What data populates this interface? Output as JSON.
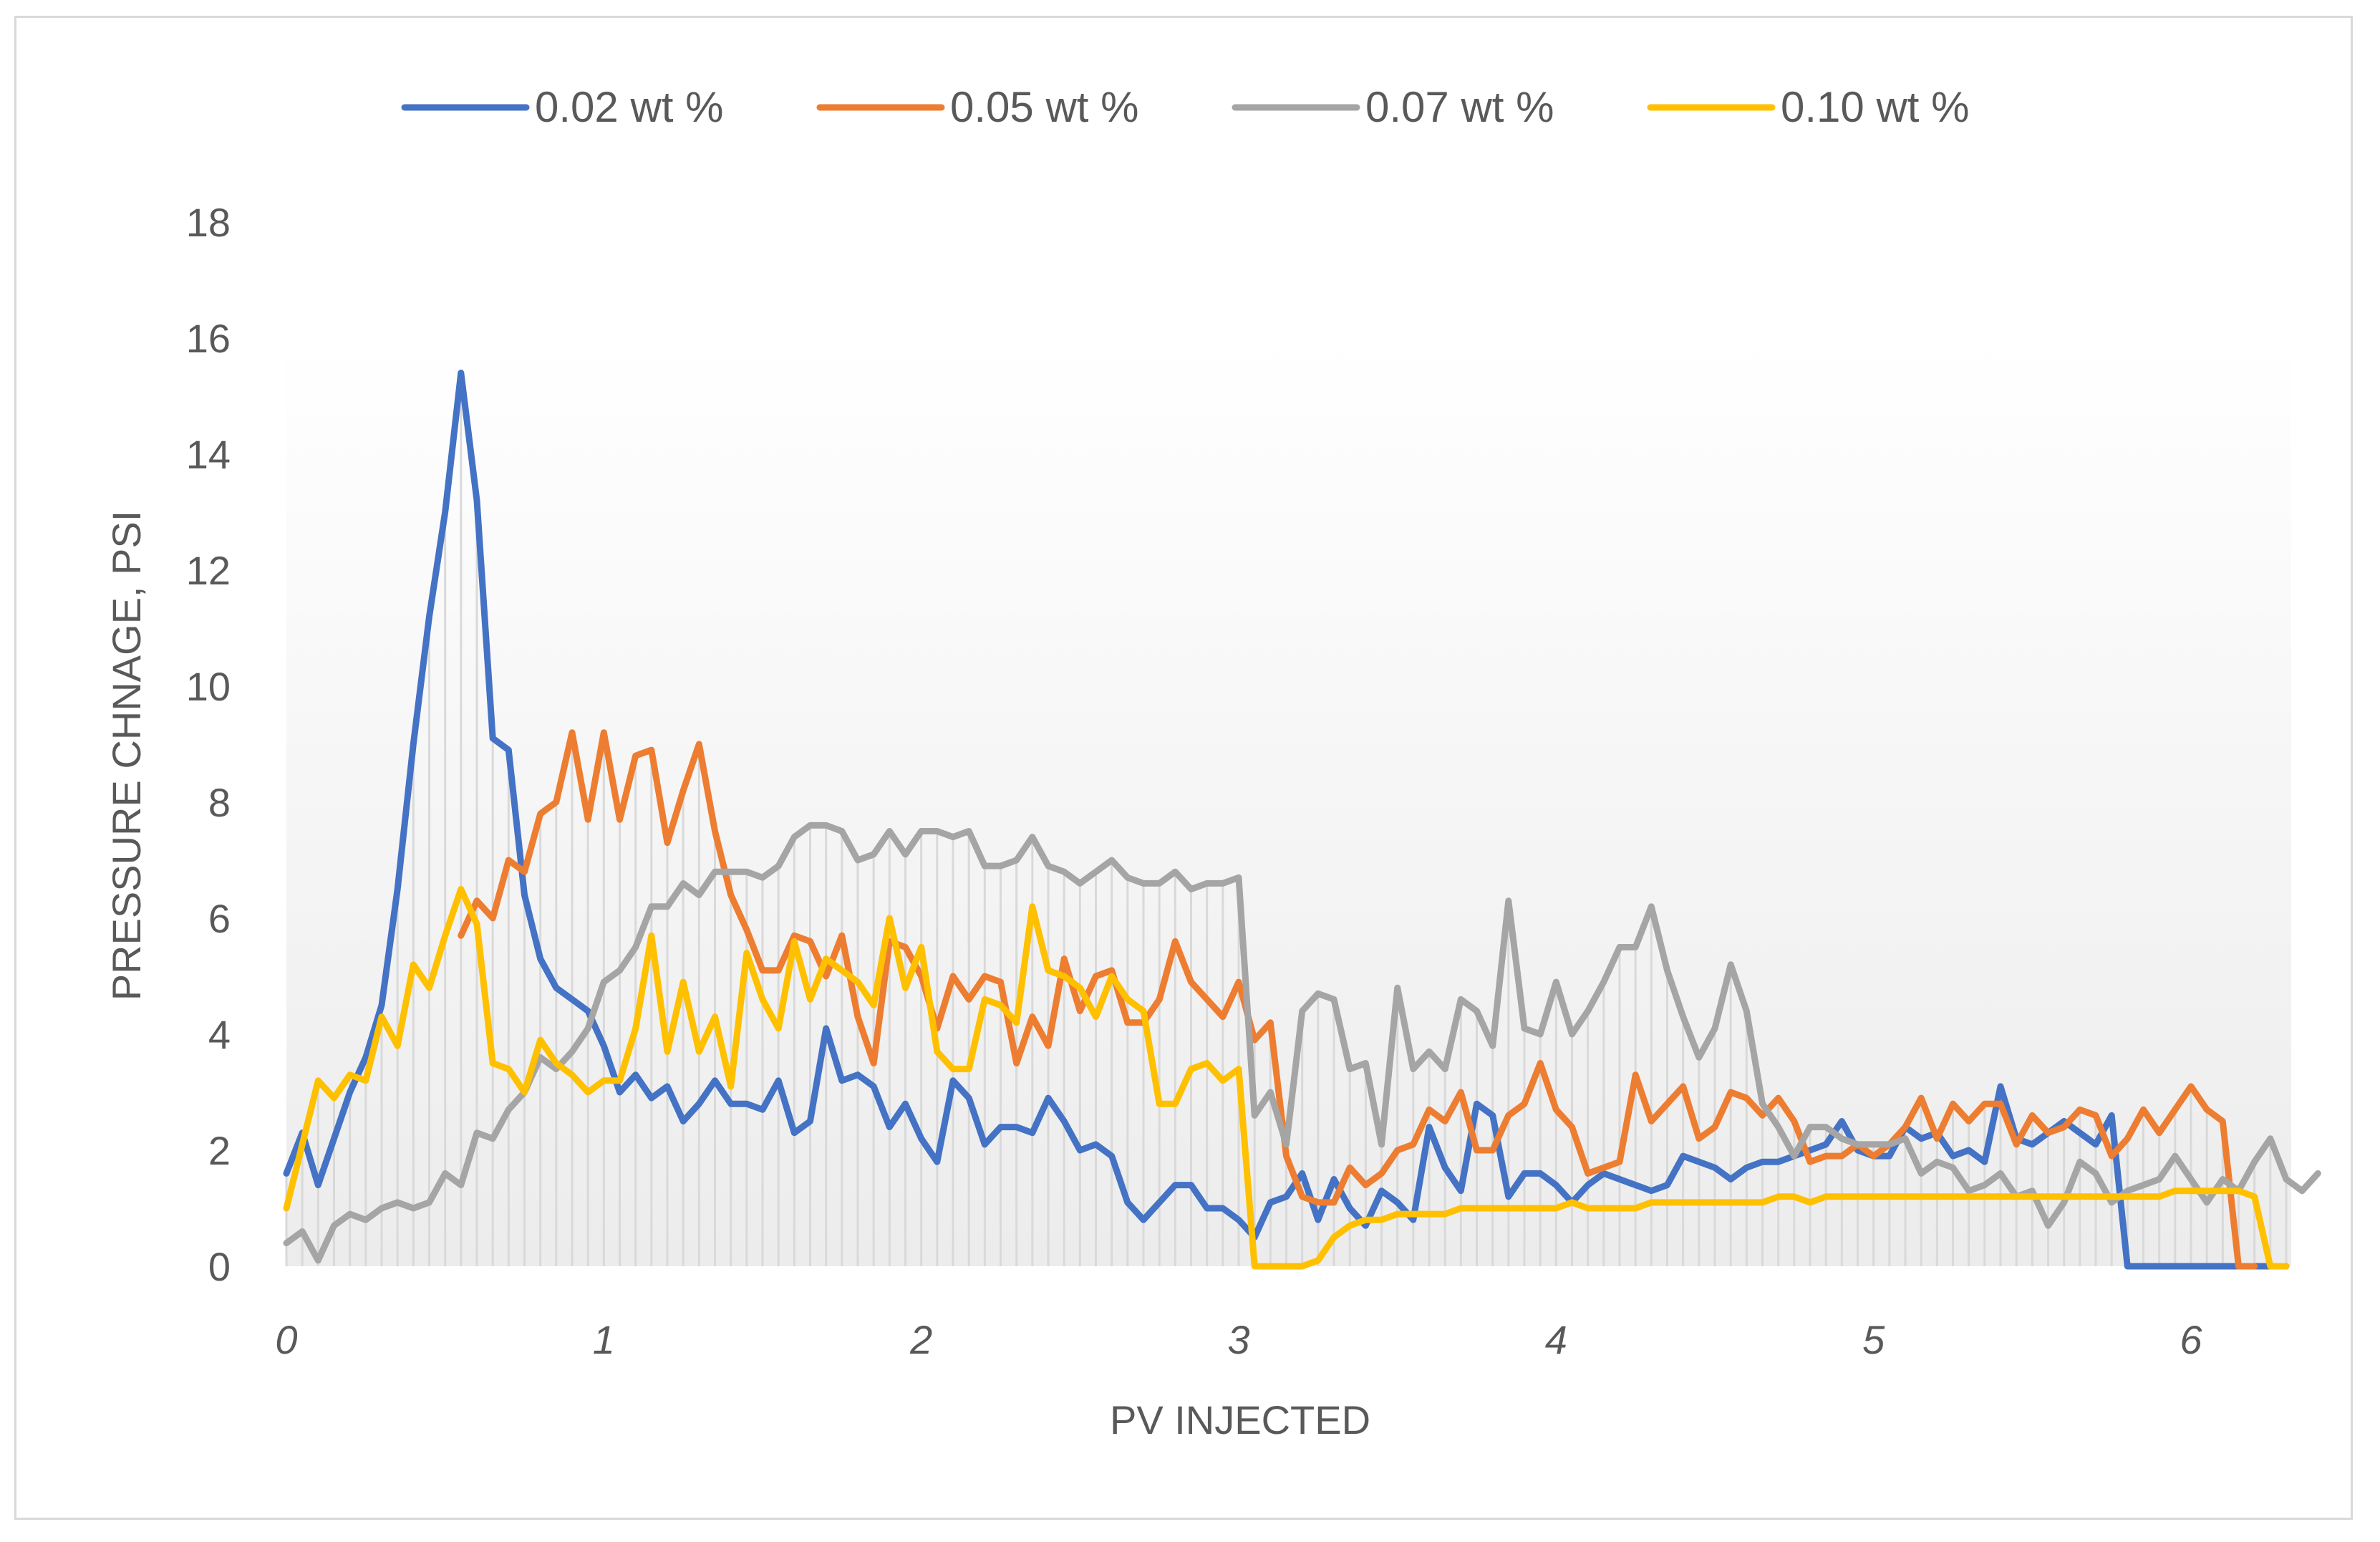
{
  "chart_data": {
    "type": "line",
    "title": "",
    "xlabel": "PV INJECTED",
    "ylabel": "PRESSURE CHNAGE, PSI",
    "xlim": [
      0,
      6.3
    ],
    "ylim": [
      0,
      18
    ],
    "xticks": [
      "0",
      "1",
      "2",
      "3",
      "4",
      "5",
      "6"
    ],
    "xtick_values": [
      0,
      1,
      2,
      3,
      4,
      5,
      6
    ],
    "yticks": [
      "0",
      "2",
      "4",
      "6",
      "8",
      "10",
      "12",
      "14",
      "16",
      "18"
    ],
    "ytick_values": [
      0,
      2,
      4,
      6,
      8,
      10,
      12,
      14,
      16,
      18
    ],
    "legend_position": "top",
    "x_step": 0.05,
    "series": [
      {
        "name": "0.02 wt %",
        "color": "#4472C4",
        "values": [
          1.6,
          2.3,
          1.4,
          2.2,
          3.0,
          3.6,
          4.5,
          6.5,
          9.0,
          11.2,
          13.0,
          15.4,
          13.2,
          9.1,
          8.9,
          6.4,
          5.3,
          4.8,
          4.6,
          4.4,
          3.8,
          3.0,
          3.3,
          2.9,
          3.1,
          2.5,
          2.8,
          3.2,
          2.8,
          2.8,
          2.7,
          3.2,
          2.3,
          2.5,
          4.1,
          3.2,
          3.3,
          3.1,
          2.4,
          2.8,
          2.2,
          1.8,
          3.2,
          2.9,
          2.1,
          2.4,
          2.4,
          2.3,
          2.9,
          2.5,
          2.0,
          2.1,
          1.9,
          1.1,
          0.8,
          1.1,
          1.4,
          1.4,
          1.0,
          1.0,
          0.8,
          0.5,
          1.1,
          1.2,
          1.6,
          0.8,
          1.5,
          1.0,
          0.7,
          1.3,
          1.1,
          0.8,
          2.4,
          1.7,
          1.3,
          2.8,
          2.6,
          1.2,
          1.6,
          1.6,
          1.4,
          1.1,
          1.4,
          1.6,
          1.5,
          1.4,
          1.3,
          1.4,
          1.9,
          1.8,
          1.7,
          1.5,
          1.7,
          1.8,
          1.8,
          1.9,
          2.0,
          2.1,
          2.5,
          2.0,
          1.9,
          1.9,
          2.4,
          2.2,
          2.3,
          1.9,
          2.0,
          1.8,
          3.1,
          2.2,
          2.1,
          2.3,
          2.5,
          2.3,
          2.1,
          2.6,
          0.0,
          0.0,
          0.0,
          0.0,
          0.0,
          0.0,
          0.0,
          0.0,
          0.0,
          0.0,
          0.0
        ]
      },
      {
        "name": "0.05 wt %",
        "color": "#ED7D31",
        "values": [
          null,
          null,
          null,
          null,
          null,
          null,
          null,
          null,
          null,
          null,
          null,
          5.7,
          6.3,
          6.0,
          7.0,
          6.8,
          7.8,
          8.0,
          9.2,
          7.7,
          9.2,
          7.7,
          8.8,
          8.9,
          7.3,
          8.2,
          9.0,
          7.5,
          6.4,
          5.8,
          5.1,
          5.1,
          5.7,
          5.6,
          5.0,
          5.7,
          4.3,
          3.5,
          5.6,
          5.5,
          5.0,
          4.1,
          5.0,
          4.6,
          5.0,
          4.9,
          3.5,
          4.3,
          3.8,
          5.3,
          4.4,
          5.0,
          5.1,
          4.2,
          4.2,
          4.6,
          5.6,
          4.9,
          4.6,
          4.3,
          4.9,
          3.9,
          4.2,
          1.9,
          1.2,
          1.1,
          1.1,
          1.7,
          1.4,
          1.6,
          2.0,
          2.1,
          2.7,
          2.5,
          3.0,
          2.0,
          2.0,
          2.6,
          2.8,
          3.5,
          2.7,
          2.4,
          1.6,
          1.7,
          1.8,
          3.3,
          2.5,
          2.8,
          3.1,
          2.2,
          2.4,
          3.0,
          2.9,
          2.6,
          2.9,
          2.5,
          1.8,
          1.9,
          1.9,
          2.1,
          1.9,
          2.1,
          2.4,
          2.9,
          2.2,
          2.8,
          2.5,
          2.8,
          2.8,
          2.1,
          2.6,
          2.3,
          2.4,
          2.7,
          2.6,
          1.9,
          2.2,
          2.7,
          2.3,
          2.7,
          3.1,
          2.7,
          2.5,
          0.0,
          0.0
        ]
      },
      {
        "name": "0.07 wt %",
        "color": "#A5A5A5",
        "values": [
          0.4,
          0.6,
          0.1,
          0.7,
          0.9,
          0.8,
          1.0,
          1.1,
          1.0,
          1.1,
          1.6,
          1.4,
          2.3,
          2.2,
          2.7,
          3.0,
          3.6,
          3.4,
          3.7,
          4.1,
          4.9,
          5.1,
          5.5,
          6.2,
          6.2,
          6.6,
          6.4,
          6.8,
          6.8,
          6.8,
          6.7,
          6.9,
          7.4,
          7.6,
          7.6,
          7.5,
          7.0,
          7.1,
          7.5,
          7.1,
          7.5,
          7.5,
          7.4,
          7.5,
          6.9,
          6.9,
          7.0,
          7.4,
          6.9,
          6.8,
          6.6,
          6.8,
          7.0,
          6.7,
          6.6,
          6.6,
          6.8,
          6.5,
          6.6,
          6.6,
          6.7,
          2.6,
          3.0,
          2.1,
          4.4,
          4.7,
          4.6,
          3.4,
          3.5,
          2.1,
          4.8,
          3.4,
          3.7,
          3.4,
          4.6,
          4.4,
          3.8,
          6.3,
          4.1,
          4.0,
          4.9,
          4.0,
          4.4,
          4.9,
          5.5,
          5.5,
          6.2,
          5.1,
          4.3,
          3.6,
          4.1,
          5.2,
          4.4,
          2.8,
          2.4,
          1.9,
          2.4,
          2.4,
          2.2,
          2.1,
          2.1,
          2.1,
          2.2,
          1.6,
          1.8,
          1.7,
          1.3,
          1.4,
          1.6,
          1.2,
          1.3,
          0.7,
          1.1,
          1.8,
          1.6,
          1.1,
          1.3,
          1.4,
          1.5,
          1.9,
          1.5,
          1.1,
          1.5,
          1.3,
          1.8,
          2.2,
          1.5,
          1.3,
          1.6
        ]
      },
      {
        "name": "0.10 wt %",
        "color": "#FFC000",
        "values": [
          1.0,
          2.1,
          3.2,
          2.9,
          3.3,
          3.2,
          4.3,
          3.8,
          5.2,
          4.8,
          5.7,
          6.5,
          5.9,
          3.5,
          3.4,
          3.0,
          3.9,
          3.5,
          3.3,
          3.0,
          3.2,
          3.2,
          4.1,
          5.7,
          3.7,
          4.9,
          3.7,
          4.3,
          3.1,
          5.4,
          4.6,
          4.1,
          5.6,
          4.6,
          5.3,
          5.1,
          4.9,
          4.5,
          6.0,
          4.8,
          5.5,
          3.7,
          3.4,
          3.4,
          4.6,
          4.5,
          4.2,
          6.2,
          5.1,
          5.0,
          4.8,
          4.3,
          5.0,
          4.6,
          4.4,
          2.8,
          2.8,
          3.4,
          3.5,
          3.2,
          3.4,
          0.0,
          0.0,
          0.0,
          0.0,
          0.1,
          0.5,
          0.7,
          0.8,
          0.8,
          0.9,
          0.9,
          0.9,
          0.9,
          1.0,
          1.0,
          1.0,
          1.0,
          1.0,
          1.0,
          1.0,
          1.1,
          1.0,
          1.0,
          1.0,
          1.0,
          1.1,
          1.1,
          1.1,
          1.1,
          1.1,
          1.1,
          1.1,
          1.1,
          1.2,
          1.2,
          1.1,
          1.2,
          1.2,
          1.2,
          1.2,
          1.2,
          1.2,
          1.2,
          1.2,
          1.2,
          1.2,
          1.2,
          1.2,
          1.2,
          1.2,
          1.2,
          1.2,
          1.2,
          1.2,
          1.2,
          1.2,
          1.2,
          1.2,
          1.3,
          1.3,
          1.3,
          1.3,
          1.3,
          1.2,
          0.0,
          0.0
        ]
      }
    ]
  }
}
